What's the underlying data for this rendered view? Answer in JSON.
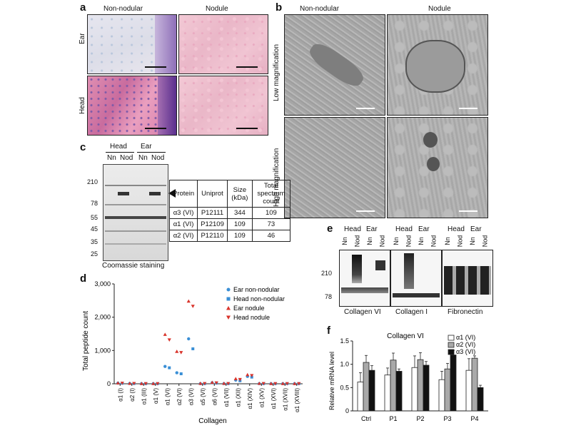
{
  "panels": {
    "a": {
      "label": "a",
      "col_headers": [
        "Non-nodular",
        "Nodule"
      ],
      "row_labels": [
        "Ear",
        "Head"
      ]
    },
    "b": {
      "label": "b",
      "col_headers": [
        "Non-nodular",
        "Nodule"
      ],
      "row_labels": [
        "Low magnification",
        "High magnification"
      ]
    },
    "c": {
      "label": "c",
      "group_labels": [
        "Head",
        "Ear"
      ],
      "lane_labels": [
        "Nn",
        "Nod",
        "Nn",
        "Nod"
      ],
      "mw_markers": [
        "210",
        "78",
        "55",
        "45",
        "35",
        "25"
      ],
      "caption": "Coomassie staining",
      "table": {
        "headers": [
          "Protein",
          "Uniprot",
          "Size (kDa)",
          "Total spectrum count"
        ],
        "rows": [
          [
            "α3 (VI)",
            "P12111",
            "344",
            "109"
          ],
          [
            "α1 (VI)",
            "P12109",
            "109",
            "73"
          ],
          [
            "α2 (VI)",
            "P12110",
            "109",
            "46"
          ]
        ]
      }
    },
    "d": {
      "label": "d"
    },
    "e": {
      "label": "e",
      "group_labels": [
        "Head",
        "Ear"
      ],
      "lane_labels": [
        "Nn",
        "Nod",
        "Nn",
        "Nod"
      ],
      "mw_markers": [
        "210",
        "78"
      ],
      "blots": [
        "Collagen VI",
        "Collagen I",
        "Fibronectin"
      ]
    },
    "f": {
      "label": "f"
    }
  },
  "chart_data": [
    {
      "id": "d",
      "type": "scatter",
      "xlabel": "Collagen",
      "ylabel": "Total peptide count",
      "ylim": [
        0,
        3000
      ],
      "yticks": [
        "0",
        "1,000",
        "2,000",
        "3,000"
      ],
      "categories": [
        "α1 (I)",
        "α2 (I)",
        "α1 (III)",
        "α1 (V)",
        "α1 (VI)",
        "α2 (VI)",
        "α3 (VI)",
        "α5 (VI)",
        "α6 (VI)",
        "α1 (VII)",
        "α1 (XII)",
        "α1 (XIV)",
        "α1 (XV)",
        "α1 (XVI)",
        "α1 (XVII)",
        "α1 (XVIII)"
      ],
      "legend_position": "top-right",
      "series": [
        {
          "name": "Ear non-nodular",
          "color": "#3a8fd6",
          "marker": "circle",
          "values": [
            20,
            10,
            5,
            5,
            520,
            330,
            1350,
            5,
            30,
            5,
            110,
            220,
            5,
            5,
            5,
            5
          ]
        },
        {
          "name": "Head non-nodular",
          "color": "#3a8fd6",
          "marker": "square",
          "values": [
            15,
            8,
            5,
            5,
            480,
            300,
            1050,
            5,
            20,
            5,
            90,
            200,
            5,
            5,
            5,
            5
          ]
        },
        {
          "name": "Ear nodule",
          "color": "#d9342b",
          "marker": "triangle-up",
          "values": [
            25,
            12,
            5,
            5,
            1480,
            970,
            2480,
            10,
            40,
            10,
            150,
            270,
            10,
            5,
            5,
            5
          ]
        },
        {
          "name": "Head nodule",
          "color": "#d9342b",
          "marker": "triangle-down",
          "values": [
            20,
            10,
            5,
            5,
            1320,
            940,
            2330,
            8,
            30,
            8,
            130,
            250,
            8,
            5,
            5,
            5
          ]
        }
      ]
    },
    {
      "id": "f",
      "type": "bar",
      "title": "Collagen VI",
      "ylabel": "Relative mRNA level",
      "ylim": [
        0,
        1.5
      ],
      "yticks": [
        "0",
        "0.5",
        "1.0",
        "1.5"
      ],
      "categories": [
        "Ctrl",
        "P1",
        "P2",
        "P3",
        "P4"
      ],
      "legend_position": "top-right",
      "series": [
        {
          "name": "α1 (VI)",
          "color": "#ffffff",
          "values": [
            0.62,
            0.77,
            0.93,
            0.67,
            0.87
          ],
          "errors": [
            0.2,
            0.15,
            0.25,
            0.18,
            0.25
          ]
        },
        {
          "name": "α2 (VI)",
          "color": "#a9a9a9",
          "values": [
            1.04,
            1.09,
            1.1,
            0.9,
            1.13
          ],
          "errors": [
            0.15,
            0.15,
            0.15,
            0.12,
            0.05
          ]
        },
        {
          "name": "α3 (VI)",
          "color": "#111111",
          "values": [
            0.87,
            0.85,
            0.98,
            1.2,
            0.5
          ],
          "errors": [
            0.1,
            0.05,
            0.08,
            0.1,
            0.05
          ]
        }
      ]
    }
  ]
}
